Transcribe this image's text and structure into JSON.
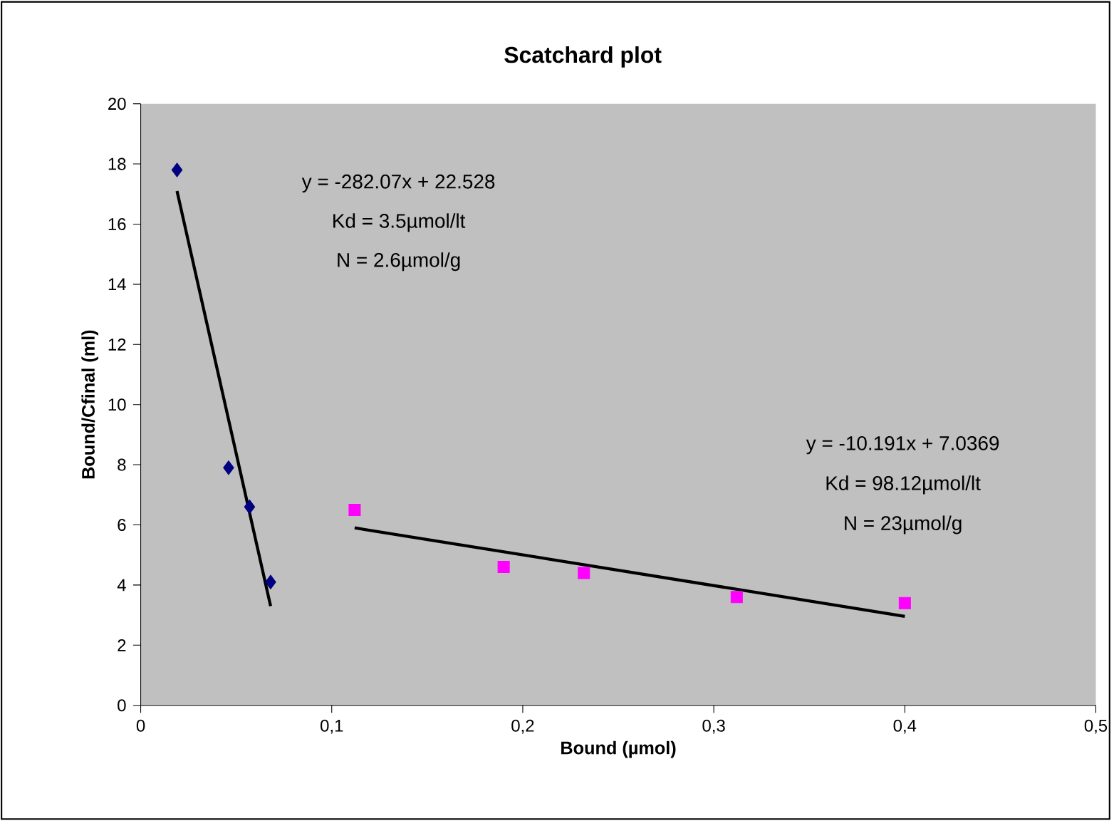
{
  "chart_data": {
    "type": "scatter",
    "title": "Scatchard plot",
    "xlabel": "Bound (µmol)",
    "ylabel": "Bound/Cfinal (ml)",
    "xlim": [
      0,
      0.5
    ],
    "xticks": [
      0,
      {
        "value": 0.1,
        "label": "0,1"
      },
      {
        "value": 0.2,
        "label": "0,2"
      },
      {
        "value": 0.3,
        "label": "0,3"
      },
      {
        "value": 0.4,
        "label": "0,4"
      },
      {
        "value": 0.5,
        "label": "0,5"
      }
    ],
    "ylim": [
      0,
      20
    ],
    "yticks": [
      0,
      2,
      4,
      6,
      8,
      10,
      12,
      14,
      16,
      18,
      20
    ],
    "grid": false,
    "annotations": [
      "y = -282.07x + 22.528",
      "Kd = 3.5µmol/lt",
      "N = 2.6µmol/g",
      "y = -10.191x + 7.0369",
      "Kd = 98.12µmol/lt",
      "N = 23µmol/g"
    ],
    "series": [
      {
        "marker": "diamond",
        "color": "#000080",
        "x": [
          0.019,
          0.046,
          0.057,
          0.068
        ],
        "values": [
          17.8,
          7.9,
          6.6,
          4.1
        ]
      },
      {
        "marker": "square",
        "color": "#ff00ff",
        "x": [
          0.112,
          0.19,
          0.232,
          0.312,
          0.4
        ],
        "values": [
          6.5,
          4.6,
          4.4,
          3.6,
          3.4
        ]
      },
      {
        "type": "line",
        "marker": "none",
        "color": "#000000",
        "x": [
          0.019,
          0.068
        ],
        "values": [
          17.1,
          3.3
        ]
      },
      {
        "type": "line",
        "marker": "none",
        "color": "#000000",
        "x": [
          0.112,
          0.4
        ],
        "values": [
          5.9,
          2.96
        ]
      }
    ]
  }
}
